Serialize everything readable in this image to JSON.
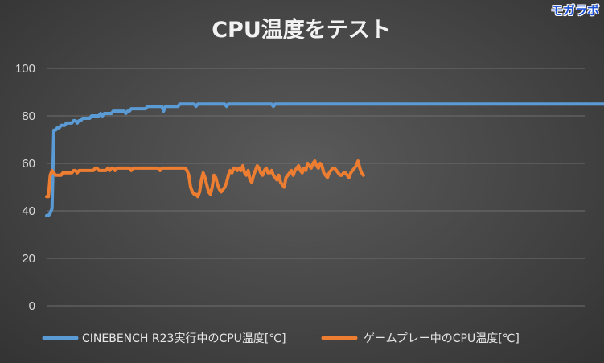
{
  "watermark": "モガラボ",
  "chart_data": {
    "type": "line",
    "title": "CPU温度をテスト",
    "xlabel": "",
    "ylabel": "",
    "ylim": [
      0,
      100
    ],
    "yticks": [
      0,
      20,
      40,
      60,
      80,
      100
    ],
    "grid": true,
    "legend_position": "bottom",
    "n_samples": 300,
    "series": [
      {
        "name": "CINEBENCH R23実行中のCPU温度[℃]",
        "color": "#5b9bd5",
        "start_index": 0,
        "values": [
          38,
          38,
          39,
          41,
          74,
          74,
          75,
          75,
          76,
          76,
          76,
          77,
          77,
          77,
          77,
          78,
          78,
          77,
          78,
          78,
          79,
          79,
          79,
          79,
          79,
          80,
          80,
          80,
          80,
          80,
          81,
          80,
          81,
          81,
          81,
          81,
          81,
          82,
          82,
          82,
          82,
          82,
          82,
          82,
          81,
          82,
          82,
          83,
          83,
          83,
          83,
          83,
          83,
          83,
          83,
          83,
          84,
          84,
          84,
          84,
          84,
          84,
          84,
          84,
          84,
          82,
          84,
          84,
          84,
          84,
          84,
          84,
          84,
          84,
          85,
          85,
          85,
          85,
          85,
          85,
          85,
          85,
          85,
          84,
          85,
          85,
          85,
          85,
          85,
          85,
          85,
          85,
          85,
          85,
          85,
          85,
          85,
          85,
          85,
          85,
          84,
          85,
          85,
          85,
          85,
          85,
          85,
          85,
          85,
          85,
          85,
          85,
          85,
          85,
          85,
          85,
          85,
          85,
          85,
          85,
          85,
          85,
          85,
          85,
          85,
          85,
          84,
          85,
          85,
          85,
          85,
          85,
          85,
          85,
          85,
          85,
          85,
          85,
          85,
          85,
          85,
          85,
          85,
          85,
          85,
          85,
          85,
          85,
          85,
          85,
          85,
          85,
          85,
          85,
          85,
          85,
          85,
          85,
          85,
          85,
          85,
          85,
          85,
          85,
          85,
          85,
          85,
          85,
          85,
          85,
          85,
          85,
          85,
          85,
          85,
          85,
          85,
          85,
          85,
          85,
          85,
          85,
          85,
          85,
          85,
          85,
          85,
          85,
          85,
          85,
          85,
          85,
          85,
          85,
          85,
          85,
          85,
          85,
          85,
          85,
          85,
          85,
          85,
          85,
          85,
          85,
          85,
          85,
          85,
          85,
          85,
          85,
          85,
          85,
          85,
          85,
          85,
          85,
          85,
          85,
          85,
          85,
          85,
          85,
          85,
          85,
          85,
          85,
          85,
          85,
          85,
          85,
          85,
          85,
          85,
          85,
          85,
          85,
          85,
          85,
          85,
          85,
          85,
          85,
          85,
          85,
          85,
          85,
          85,
          85,
          85,
          85,
          85,
          85,
          85,
          85,
          85,
          85,
          85,
          85,
          85,
          85,
          85,
          85,
          85,
          85,
          85,
          85,
          85,
          85,
          85,
          85,
          85,
          85,
          85,
          85,
          85,
          85,
          85,
          85,
          85,
          85,
          85,
          85,
          85,
          85,
          85,
          85,
          85,
          85,
          85,
          85,
          85,
          85,
          85,
          85,
          85,
          85,
          85,
          85,
          85,
          85,
          85,
          85,
          85,
          85,
          85,
          85,
          85,
          85,
          85,
          85,
          85,
          85,
          85,
          85,
          85,
          85,
          80
        ]
      },
      {
        "name": "ゲームプレー中のCPU温度[℃]",
        "color": "#ed7d31",
        "start_index": 0,
        "values": [
          46,
          46,
          55,
          57,
          56,
          55,
          55,
          55,
          55,
          56,
          56,
          56,
          56,
          56,
          56,
          57,
          57,
          56,
          57,
          57,
          57,
          57,
          57,
          57,
          57,
          57,
          57,
          58,
          58,
          57,
          57,
          57,
          57,
          57,
          58,
          57,
          58,
          58,
          57,
          58,
          58,
          58,
          58,
          58,
          58,
          58,
          58,
          57,
          58,
          58,
          58,
          58,
          58,
          58,
          58,
          58,
          58,
          58,
          58,
          58,
          58,
          58,
          58,
          57,
          58,
          58,
          58,
          58,
          58,
          58,
          58,
          58,
          58,
          58,
          58,
          58,
          58,
          58,
          57,
          55,
          50,
          48,
          47,
          47,
          46,
          48,
          53,
          56,
          54,
          51,
          48,
          47,
          50,
          55,
          54,
          51,
          49,
          48,
          49,
          50,
          52,
          55,
          57,
          56,
          58,
          58,
          57,
          58,
          57,
          59,
          56,
          55,
          57,
          53,
          52,
          55,
          57,
          59,
          58,
          56,
          55,
          57,
          58,
          56,
          56,
          57,
          55,
          54,
          53,
          55,
          52,
          51,
          50,
          54,
          55,
          56,
          57,
          55,
          57,
          58,
          59,
          57,
          56,
          58,
          57,
          60,
          59,
          58,
          60,
          61,
          59,
          58,
          60,
          59,
          56,
          55,
          54,
          56,
          57,
          58,
          58,
          57,
          56,
          55,
          55,
          56,
          56,
          55,
          54,
          56,
          57,
          58,
          59,
          61,
          58,
          56,
          55
        ]
      }
    ]
  }
}
